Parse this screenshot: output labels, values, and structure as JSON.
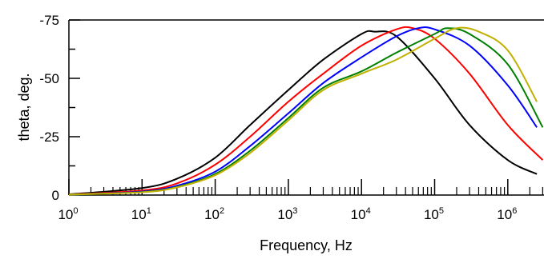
{
  "chart_data": {
    "type": "line",
    "title": "",
    "xlabel": "Frequency, Hz",
    "ylabel": "theta, deg.",
    "x_scale": "log",
    "xlim": [
      1,
      3000000
    ],
    "ylim": [
      0,
      -75
    ],
    "x_ticks": [
      {
        "base": "10",
        "exp": "0",
        "value": 1
      },
      {
        "base": "10",
        "exp": "1",
        "value": 10
      },
      {
        "base": "10",
        "exp": "2",
        "value": 100
      },
      {
        "base": "10",
        "exp": "3",
        "value": 1000
      },
      {
        "base": "10",
        "exp": "4",
        "value": 10000
      },
      {
        "base": "10",
        "exp": "5",
        "value": 100000
      },
      {
        "base": "10",
        "exp": "6",
        "value": 1000000
      }
    ],
    "y_ticks": [
      {
        "label": "0",
        "value": 0
      },
      {
        "label": "-25",
        "value": -25
      },
      {
        "label": "-50",
        "value": -50
      },
      {
        "label": "-75",
        "value": -75
      }
    ],
    "grid": false,
    "legend": "none",
    "series": [
      {
        "color": "#000000",
        "points": [
          [
            1,
            -0.3
          ],
          [
            10,
            -3
          ],
          [
            30,
            -7
          ],
          [
            100,
            -16
          ],
          [
            300,
            -30
          ],
          [
            1000,
            -45
          ],
          [
            3000,
            -58
          ],
          [
            10000,
            -69
          ],
          [
            15000,
            -70
          ],
          [
            30000,
            -68
          ],
          [
            100000,
            -50
          ],
          [
            300000,
            -30
          ],
          [
            1000000,
            -15
          ],
          [
            2500000,
            -9
          ]
        ]
      },
      {
        "color": "#ff0000",
        "points": [
          [
            1,
            -0.2
          ],
          [
            10,
            -2
          ],
          [
            30,
            -5
          ],
          [
            100,
            -13
          ],
          [
            300,
            -25
          ],
          [
            1000,
            -40
          ],
          [
            3000,
            -52
          ],
          [
            10000,
            -64
          ],
          [
            30000,
            -71
          ],
          [
            50000,
            -71.5
          ],
          [
            100000,
            -67
          ],
          [
            300000,
            -52
          ],
          [
            1000000,
            -30
          ],
          [
            3000000,
            -15
          ]
        ]
      },
      {
        "color": "#0000ff",
        "points": [
          [
            1,
            -0.2
          ],
          [
            10,
            -1.5
          ],
          [
            30,
            -4
          ],
          [
            100,
            -10
          ],
          [
            300,
            -21
          ],
          [
            1000,
            -35
          ],
          [
            3000,
            -48
          ],
          [
            10000,
            -59
          ],
          [
            30000,
            -68
          ],
          [
            60000,
            -71.5
          ],
          [
            100000,
            -71
          ],
          [
            300000,
            -64
          ],
          [
            1000000,
            -47
          ],
          [
            2500000,
            -29
          ]
        ]
      },
      {
        "color": "#008000",
        "points": [
          [
            1,
            -0.2
          ],
          [
            10,
            -1.3
          ],
          [
            30,
            -3.5
          ],
          [
            100,
            -9
          ],
          [
            300,
            -19
          ],
          [
            1000,
            -33
          ],
          [
            3000,
            -46
          ],
          [
            10000,
            -53
          ],
          [
            30000,
            -61
          ],
          [
            100000,
            -69
          ],
          [
            150000,
            -71.5
          ],
          [
            300000,
            -69
          ],
          [
            1000000,
            -56
          ],
          [
            3000000,
            -29
          ]
        ]
      },
      {
        "color": "#c0b000",
        "points": [
          [
            1,
            -0.2
          ],
          [
            10,
            -1.2
          ],
          [
            30,
            -3.3
          ],
          [
            100,
            -8.5
          ],
          [
            300,
            -18
          ],
          [
            1000,
            -32
          ],
          [
            3000,
            -45
          ],
          [
            10000,
            -52
          ],
          [
            30000,
            -58
          ],
          [
            100000,
            -67
          ],
          [
            200000,
            -71.5
          ],
          [
            400000,
            -70
          ],
          [
            1000000,
            -62
          ],
          [
            2500000,
            -40
          ]
        ]
      }
    ]
  }
}
